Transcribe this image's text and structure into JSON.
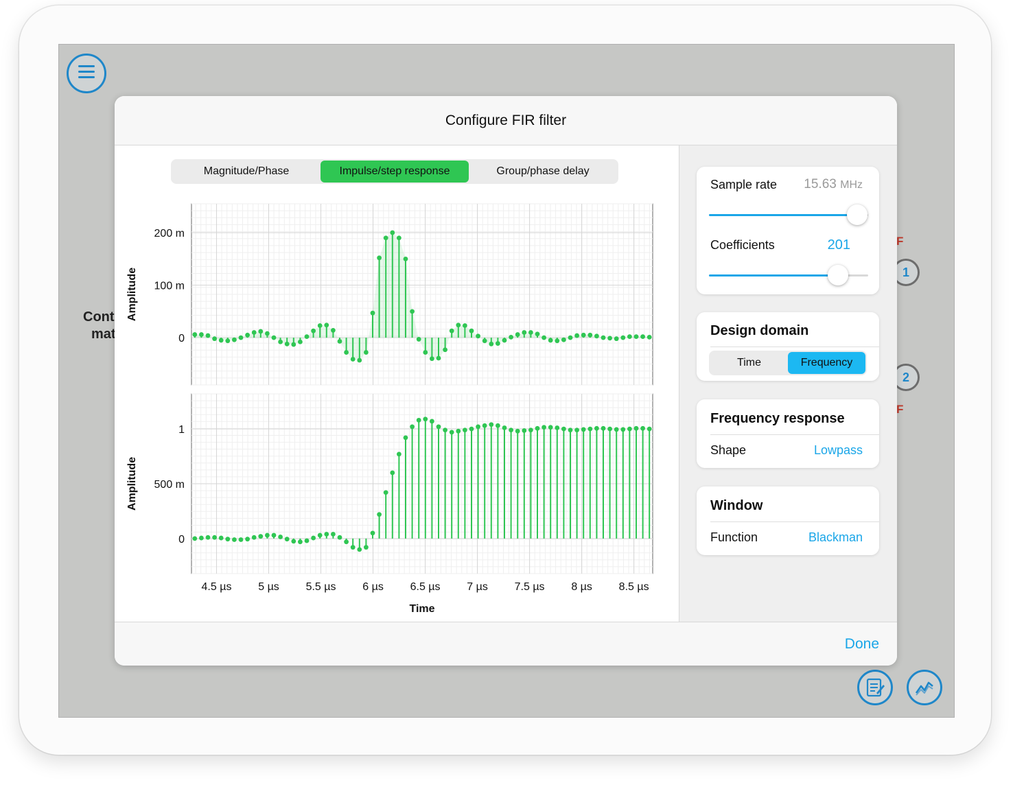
{
  "background": {
    "left_text_line1": "Cont",
    "left_text_line2": "mat",
    "side_items": [
      {
        "label": "F",
        "number": "1"
      },
      {
        "label": "F",
        "number": "2"
      }
    ]
  },
  "dialog": {
    "title": "Configure FIR filter",
    "done_label": "Done",
    "tabs": [
      {
        "label": "Magnitude/Phase",
        "active": false
      },
      {
        "label": "Impulse/step response",
        "active": true
      },
      {
        "label": "Group/phase delay",
        "active": false
      }
    ]
  },
  "settings": {
    "sample_rate": {
      "label": "Sample rate",
      "value": "15.63",
      "unit": "MHz",
      "slider_level": 0.93
    },
    "coefficients": {
      "label": "Coefficients",
      "value": "201",
      "slider_level": 0.81
    },
    "design_domain": {
      "title": "Design domain",
      "options": [
        "Time",
        "Frequency"
      ],
      "selected": "Frequency"
    },
    "frequency_response": {
      "title": "Frequency response",
      "shape_label": "Shape",
      "shape_value": "Lowpass"
    },
    "window": {
      "title": "Window",
      "function_label": "Function",
      "function_value": "Blackman"
    }
  },
  "colors": {
    "accent": "#1aa6e8",
    "stem": "#2fc653",
    "active_tab": "#2fc653",
    "active_domain": "#1cb8f2"
  },
  "chart_data": [
    {
      "type": "stem",
      "title": "",
      "xlabel": "Time",
      "ylabel": "Amplitude",
      "x_start_us": 4.03,
      "x_step_us": 0.064,
      "xlim_us": [
        4.26,
        8.68
      ],
      "xticks_us": [
        4.5,
        5,
        5.5,
        6,
        6.5,
        7,
        7.5,
        8,
        8.5
      ],
      "xtick_labels": [
        "4.5 µs",
        "5 µs",
        "5.5 µs",
        "6 µs",
        "6.5 µs",
        "7 µs",
        "7.5 µs",
        "8 µs",
        "8.5 µs"
      ],
      "ylim": [
        -0.09,
        0.255
      ],
      "yticks": [
        0,
        0.1,
        0.2
      ],
      "ytick_labels": [
        "0",
        "100 m",
        "200 m"
      ],
      "values": [
        0.006,
        0.006,
        0.004,
        -0.002,
        -0.005,
        -0.006,
        -0.004,
        0.0,
        0.005,
        0.01,
        0.012,
        0.008,
        0.0,
        -0.008,
        -0.012,
        -0.013,
        -0.008,
        0.002,
        0.013,
        0.023,
        0.024,
        0.014,
        -0.007,
        -0.028,
        -0.041,
        -0.043,
        -0.028,
        0.047,
        0.152,
        0.19,
        0.2,
        0.19,
        0.15,
        0.05,
        -0.003,
        -0.028,
        -0.04,
        -0.039,
        -0.023,
        0.013,
        0.024,
        0.023,
        0.013,
        0.003,
        -0.006,
        -0.012,
        -0.011,
        -0.005,
        0.001,
        0.006,
        0.01,
        0.01,
        0.007,
        0.0,
        -0.005,
        -0.006,
        -0.004,
        0.0,
        0.004,
        0.005,
        0.005,
        0.003,
        0.0,
        -0.001,
        -0.002,
        0.0,
        0.002,
        0.002,
        0.002,
        0.001,
        0.0,
        0.0,
        0.0,
        0.0,
        0.0,
        0.0,
        0.0,
        0.0,
        0.0,
        0.0,
        0.0,
        0.0,
        0.0,
        0.0,
        0.0,
        0.0,
        0.0,
        0.0,
        0.0,
        0.0,
        0.0,
        0.0,
        0.0,
        0.0,
        0.0,
        0.0,
        0.0,
        0.0,
        0.0,
        0.0,
        0.0,
        0.0,
        0.0,
        0.0,
        0.0,
        0.0,
        0.0,
        0.0,
        0.0,
        0.0,
        0.0,
        0.0,
        0.0,
        0.0,
        0.0,
        0.0,
        0.0,
        0.0,
        0.0,
        0.0,
        0.0,
        0.0,
        0.0,
        0.0,
        0.0,
        0.0,
        0.0,
        0.0,
        0.0,
        0.0,
        0.0,
        0.0,
        0.0,
        0.0,
        0.0,
        0.0,
        0.0,
        0.0,
        0.0,
        0.0,
        0.0,
        0.0,
        0.0,
        0.0,
        0.0,
        0.0,
        0.0,
        0.0,
        0.0,
        0.0,
        0.0,
        0.0,
        0.0,
        0.0,
        0.0,
        0.0,
        0.0,
        0.0,
        0.0,
        0.0,
        0.0,
        0.0,
        0.0,
        0.0,
        0.0,
        0.0,
        0.0,
        0.0,
        0.0,
        0.0,
        0.0,
        0.0,
        0.0,
        0.0,
        0.0,
        0.0,
        0.0,
        0.0,
        0.0,
        0.0,
        0.0,
        0.0,
        0.0,
        0.0,
        0.0,
        0.0,
        0.0,
        0.0,
        0.0,
        0.0,
        0.0,
        0.0,
        0.0,
        0.0,
        0.0,
        0.0,
        0.0,
        0.0,
        0.0,
        0.0,
        0.0,
        0.0,
        0.0,
        0.0,
        0.0,
        0.0,
        0.0
      ],
      "visible_values": [
        0.006,
        0.006,
        0.004,
        -0.002,
        -0.005,
        -0.006,
        -0.004,
        0.0,
        0.005,
        0.01,
        0.012,
        0.008,
        0.0,
        -0.008,
        -0.012,
        -0.013,
        -0.008,
        0.002,
        0.013,
        0.023,
        0.024,
        0.014,
        -0.007,
        -0.028,
        -0.041,
        -0.043,
        -0.028,
        0.047,
        0.152,
        0.19,
        0.2,
        0.19,
        0.15,
        0.05,
        -0.003,
        -0.028,
        -0.04,
        -0.039,
        -0.023,
        0.013,
        0.024,
        0.023,
        0.013,
        0.003,
        -0.006,
        -0.012,
        -0.011,
        -0.005,
        0.001,
        0.006,
        0.01,
        0.01,
        0.007,
        0.0,
        -0.005,
        -0.006,
        -0.004,
        0.0,
        0.004,
        0.005,
        0.005,
        0.003,
        0.0,
        -0.001,
        -0.002,
        0.0,
        0.002,
        0.002,
        0.002,
        0.001
      ],
      "visible_x_us": [
        4.26,
        8.68
      ]
    },
    {
      "type": "stem",
      "title": "",
      "xlabel": "Time",
      "ylabel": "Amplitude",
      "xlim_us": [
        4.26,
        8.68
      ],
      "xticks_us": [
        4.5,
        5,
        5.5,
        6,
        6.5,
        7,
        7.5,
        8,
        8.5
      ],
      "xtick_labels": [
        "4.5 µs",
        "5 µs",
        "5.5 µs",
        "6 µs",
        "6.5 µs",
        "7 µs",
        "7.5 µs",
        "8 µs",
        "8.5 µs"
      ],
      "ylim": [
        -0.32,
        1.32
      ],
      "yticks": [
        0,
        0.5,
        1
      ],
      "ytick_labels": [
        "0",
        "500 m",
        "1"
      ],
      "values": [
        0.0,
        0.005,
        0.01,
        0.01,
        0.005,
        -0.005,
        -0.01,
        -0.01,
        -0.005,
        0.01,
        0.02,
        0.03,
        0.03,
        0.015,
        -0.005,
        -0.025,
        -0.03,
        -0.02,
        0.005,
        0.03,
        0.04,
        0.04,
        0.01,
        -0.03,
        -0.08,
        -0.1,
        -0.08,
        0.05,
        0.22,
        0.42,
        0.6,
        0.77,
        0.92,
        1.02,
        1.08,
        1.09,
        1.07,
        1.02,
        0.99,
        0.97,
        0.98,
        0.99,
        1.0,
        1.02,
        1.03,
        1.04,
        1.03,
        1.01,
        0.99,
        0.98,
        0.985,
        0.99,
        1.005,
        1.015,
        1.015,
        1.01,
        1.0,
        0.99,
        0.99,
        0.995,
        1.0,
        1.005,
        1.005,
        1.0,
        0.995,
        0.995,
        1.0,
        1.005,
        1.005,
        1.0
      ]
    }
  ]
}
